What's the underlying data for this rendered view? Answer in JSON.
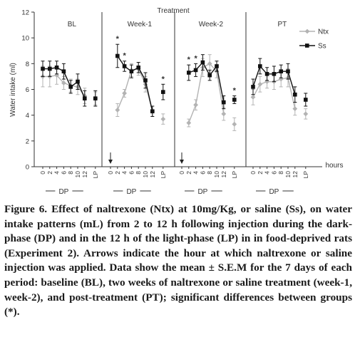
{
  "figure": {
    "caption": "Figure 6. Effect of naltrexone (Ntx) at 10mg/Kg, or saline (Ss), on water intake patterns (mL) from 2 to 12 h following injection during the dark-phase (DP) and in the 12 h of the light-phase (LP) in in food-deprived rats (Experiment 2). Arrows indicate the hour at which naltrexone or saline injection was applied. Data show the mean ± S.E.M for the 7 days of each period: baseline (BL), two weeks of naltrexone or saline treatment (week-1, week-2), and post-treatment (PT); significant differences between groups (*)."
  },
  "chart_data": {
    "type": "line",
    "title": "Treatment",
    "ylabel": "Water intake (ml)",
    "xlabel": "hours",
    "ylim": [
      0,
      12
    ],
    "yticks": [
      0,
      2,
      4,
      6,
      8,
      10,
      12
    ],
    "legend": {
      "position": "top-right",
      "entries": [
        "Ntx",
        "Ss"
      ]
    },
    "x_ticks": [
      "0",
      "2",
      "4",
      "6",
      "8",
      "10",
      "12",
      "LP"
    ],
    "phase_label": "DP",
    "colors": {
      "Ntx": "#b3b3b3",
      "Ss": "#111111"
    },
    "panels": [
      {
        "name": "BL",
        "arrow": false,
        "series": [
          {
            "name": "Ntx",
            "values": [
              7.0,
              7.0,
              7.1,
              6.5,
              6.3,
              6.2,
              5.5,
              5.3
            ],
            "err": [
              0.8,
              0.8,
              0.7,
              0.5,
              0.5,
              0.6,
              0.6,
              0.5
            ]
          },
          {
            "name": "Ss",
            "values": [
              7.6,
              7.6,
              7.7,
              7.4,
              6.2,
              6.6,
              5.3,
              5.3
            ],
            "err": [
              0.6,
              0.6,
              0.5,
              0.6,
              0.5,
              0.6,
              0.6,
              0.6
            ]
          }
        ],
        "stars": []
      },
      {
        "name": "Week-1",
        "arrow": true,
        "series": [
          {
            "name": "Ntx",
            "values": [
              null,
              4.4,
              5.7,
              7.5,
              7.6,
              6.4,
              4.3,
              3.7
            ],
            "err": [
              0,
              0.5,
              0.3,
              0.5,
              0.5,
              0.6,
              0.4,
              0.4
            ]
          },
          {
            "name": "Ss",
            "values": [
              null,
              8.6,
              7.8,
              7.4,
              7.7,
              6.7,
              4.3,
              5.8
            ],
            "err": [
              0,
              0.9,
              0.4,
              0.5,
              0.4,
              0.6,
              0.4,
              0.6
            ]
          }
        ],
        "stars": [
          "2",
          "4",
          "LP"
        ]
      },
      {
        "name": "Week-2",
        "arrow": true,
        "series": [
          {
            "name": "Ntx",
            "values": [
              null,
              3.4,
              4.8,
              7.7,
              8.0,
              7.4,
              4.1,
              3.3
            ],
            "err": [
              0,
              0.3,
              0.4,
              0.7,
              0.7,
              0.5,
              0.5,
              0.5
            ]
          },
          {
            "name": "Ss",
            "values": [
              null,
              7.3,
              7.5,
              8.1,
              7.1,
              7.8,
              5.0,
              5.2
            ],
            "err": [
              0,
              0.6,
              0.5,
              0.6,
              0.4,
              0.4,
              0.5,
              0.3
            ]
          }
        ],
        "stars": [
          "2",
          "4",
          "LP"
        ]
      },
      {
        "name": "PT",
        "arrow": false,
        "series": [
          {
            "name": "Ntx",
            "values": [
              5.4,
              6.4,
              6.6,
              6.6,
              6.8,
              6.9,
              4.5,
              4.1
            ],
            "err": [
              0.6,
              0.6,
              0.5,
              0.6,
              0.6,
              0.7,
              0.5,
              0.4
            ]
          },
          {
            "name": "Ss",
            "values": [
              6.2,
              7.8,
              7.2,
              7.2,
              7.4,
              7.4,
              5.6,
              5.2
            ],
            "err": [
              0.6,
              0.6,
              0.5,
              0.6,
              0.5,
              0.6,
              0.6,
              0.5
            ]
          }
        ],
        "stars": []
      }
    ]
  }
}
